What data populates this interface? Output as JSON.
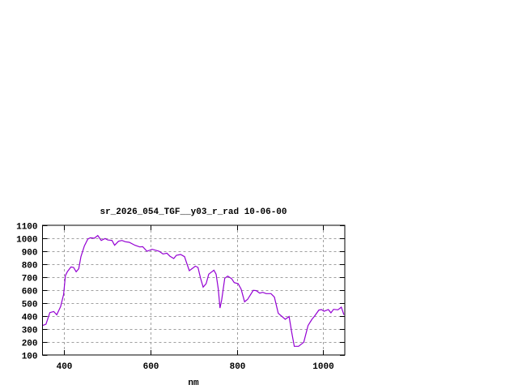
{
  "chart_data": {
    "type": "line",
    "title": "sr_2026_054_TGF__y03_r_rad 10-06-00",
    "xlabel": "nm",
    "ylabel": "",
    "xlim": [
      350,
      1050
    ],
    "ylim": [
      100,
      1100
    ],
    "xticks": [
      400,
      600,
      800,
      1000
    ],
    "yticks": [
      100,
      200,
      300,
      400,
      500,
      600,
      700,
      800,
      900,
      1000,
      1100
    ],
    "grid": true,
    "line_color": "#9400d3",
    "series": [
      {
        "x": [
          350,
          358,
          367,
          376,
          383,
          392,
          399,
          403,
          408,
          416,
          422,
          428,
          434,
          439,
          447,
          455,
          461,
          470,
          478,
          486,
          495,
          501,
          511,
          517,
          526,
          534,
          542,
          551,
          564,
          575,
          582,
          592,
          604,
          620,
          629,
          638,
          645,
          654,
          660,
          670,
          679,
          683,
          690,
          700,
          704,
          710,
          716,
          722,
          729,
          735,
          747,
          752,
          757,
          761,
          765,
          772,
          779,
          788,
          794,
          803,
          810,
          818,
          825,
          838,
          845,
          853,
          860,
          868,
          879,
          887,
          896,
          912,
          921,
          927,
          933,
          943,
          955,
          965,
          974,
          980,
          990,
          996,
          1002,
          1012,
          1018,
          1024,
          1034,
          1042,
          1048
        ],
        "y": [
          327,
          337,
          427,
          435,
          410,
          473,
          567,
          712,
          744,
          779,
          775,
          742,
          765,
          858,
          942,
          994,
          1004,
          1000,
          1021,
          983,
          998,
          987,
          983,
          946,
          977,
          983,
          973,
          969,
          946,
          933,
          935,
          900,
          915,
          900,
          879,
          885,
          862,
          844,
          869,
          875,
          858,
          817,
          750,
          775,
          785,
          775,
          692,
          623,
          650,
          723,
          754,
          723,
          608,
          462,
          525,
          692,
          708,
          688,
          658,
          650,
          608,
          510,
          529,
          598,
          596,
          577,
          583,
          573,
          573,
          546,
          421,
          375,
          396,
          275,
          167,
          167,
          198,
          327,
          375,
          400,
          446,
          450,
          437,
          450,
          425,
          452,
          448,
          469,
          410
        ]
      }
    ]
  }
}
